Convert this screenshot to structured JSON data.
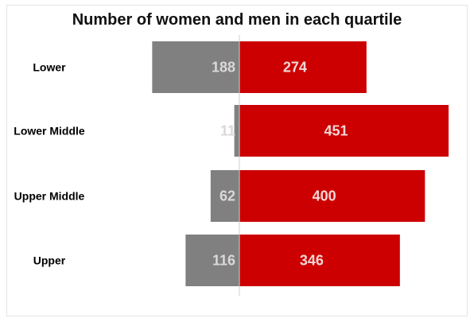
{
  "chart_data": {
    "type": "bar",
    "title": "Number of women and men in each quartile",
    "categories": [
      "Lower",
      "Lower Middle",
      "Upper Middle",
      "Upper"
    ],
    "series": [
      {
        "values": [
          188,
          11,
          62,
          116
        ],
        "color": "#808080",
        "label_color": "#d9d9d9",
        "direction": "left"
      },
      {
        "values": [
          274,
          451,
          400,
          346
        ],
        "color": "#cc0000",
        "label_color": "#f5d6d6",
        "direction": "right"
      }
    ],
    "grid": false,
    "legend": "none"
  }
}
